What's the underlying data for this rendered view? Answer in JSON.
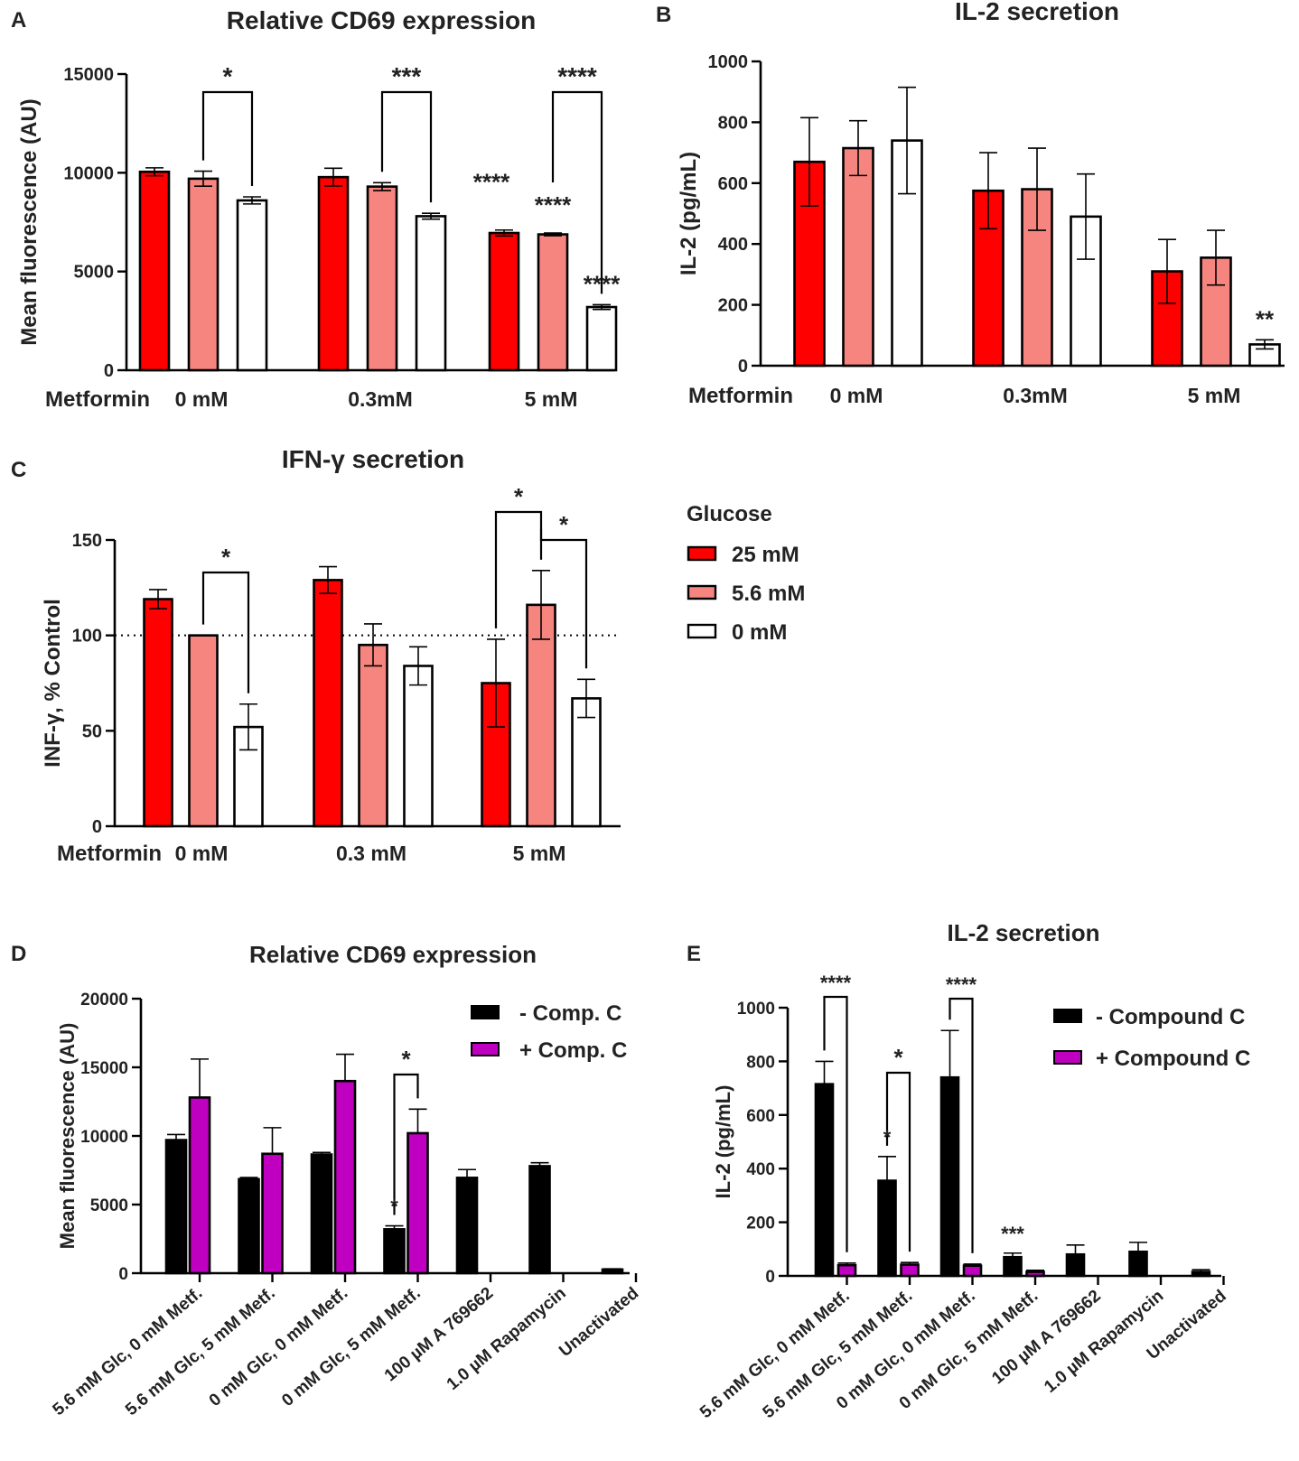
{
  "chart_data": [
    {
      "panel": "A",
      "type": "bar",
      "title": "Relative CD69 expression",
      "ylabel": "Mean fluorescence (AU)",
      "xlabel": "Metformin",
      "ylim": [
        0,
        15000
      ],
      "yticks": [
        "0",
        "5000",
        "10000",
        "15000"
      ],
      "categories": [
        "0 mM",
        "0.3mM",
        "5 mM"
      ],
      "series": [
        {
          "name": "25 mM",
          "color": "#ff0000",
          "values": [
            10050,
            9780,
            6950
          ],
          "errors": [
            200,
            450,
            150
          ]
        },
        {
          "name": "5.6 mM",
          "color": "#f7857f",
          "values": [
            9700,
            9300,
            6880
          ],
          "errors": [
            380,
            200,
            70
          ]
        },
        {
          "name": "0 mM",
          "color": "#ffffff",
          "values": [
            8600,
            7800,
            3200
          ],
          "errors": [
            180,
            150,
            120
          ]
        }
      ],
      "annotations": {
        "brackets": [
          {
            "label": "*",
            "group": 0,
            "from": 1,
            "to": 2
          },
          {
            "label": "***",
            "group": 1,
            "from": 1,
            "to": 2
          },
          {
            "label": "****",
            "group": 2,
            "from": 1,
            "to": 2
          }
        ],
        "stars": [
          {
            "label": "****",
            "group": 2,
            "series": 0
          },
          {
            "label": "****",
            "group": 2,
            "series": 1
          },
          {
            "label": "****",
            "group": 2,
            "series": 2
          }
        ]
      }
    },
    {
      "panel": "B",
      "type": "bar",
      "title": "IL-2 secretion",
      "ylabel": "IL-2 (pg/mL)",
      "xlabel": "Metformin",
      "ylim": [
        0,
        1000
      ],
      "yticks": [
        "0",
        "200",
        "400",
        "600",
        "800",
        "1000"
      ],
      "categories": [
        "0 mM",
        "0.3mM",
        "5 mM"
      ],
      "series": [
        {
          "name": "25 mM",
          "color": "#ff0000",
          "values": [
            670,
            575,
            310
          ],
          "errors": [
            145,
            125,
            105
          ]
        },
        {
          "name": "5.6 mM",
          "color": "#f7857f",
          "values": [
            715,
            580,
            355
          ],
          "errors": [
            90,
            135,
            90
          ]
        },
        {
          "name": "0 mM",
          "color": "#ffffff",
          "values": [
            740,
            490,
            70
          ],
          "errors": [
            175,
            140,
            15
          ]
        }
      ],
      "annotations": {
        "stars": [
          {
            "label": "**",
            "group": 2,
            "series": 2
          }
        ]
      }
    },
    {
      "panel": "C",
      "type": "bar",
      "title": "IFN-γ secretion",
      "ylabel": "INF-γ, % Control",
      "xlabel": "Metformin",
      "ylim": [
        0,
        150
      ],
      "yticks": [
        "0",
        "50",
        "100",
        "150"
      ],
      "reference_line": 100,
      "categories": [
        "0 mM",
        "0.3 mM",
        "5 mM"
      ],
      "series": [
        {
          "name": "25 mM",
          "color": "#ff0000",
          "values": [
            119,
            129,
            75
          ],
          "errors": [
            5,
            7,
            23
          ]
        },
        {
          "name": "5.6 mM",
          "color": "#f7857f",
          "values": [
            100,
            95,
            116
          ],
          "errors": [
            0,
            11,
            18
          ]
        },
        {
          "name": "0 mM",
          "color": "#ffffff",
          "values": [
            52,
            84,
            67
          ],
          "errors": [
            12,
            10,
            10
          ]
        }
      ],
      "annotations": {
        "brackets": [
          {
            "label": "*",
            "group": 0,
            "from": 1,
            "to": 2
          },
          {
            "label": "*",
            "group": 2,
            "from": 0,
            "to": 1
          },
          {
            "label": "*",
            "group": 2,
            "from": 1,
            "to": 2
          }
        ]
      }
    },
    {
      "panel": "D",
      "type": "bar",
      "title": "Relative CD69 expression",
      "ylabel": "Mean fluorescence (AU)",
      "ylim": [
        0,
        20000
      ],
      "yticks": [
        "0",
        "5000",
        "10000",
        "15000",
        "20000"
      ],
      "categories": [
        "5.6 mM Glc, 0 mM Metf.",
        "5.6 mM Glc, 5 mM Metf.",
        "0 mM Glc, 0 mM Metf.",
        "0 mM Glc, 5 mM Metf.",
        "100 µM A 769662",
        "1.0 µM Rapamycin",
        "Unactivated"
      ],
      "series": [
        {
          "name": "- Comp. C",
          "color": "#000000",
          "values": [
            9700,
            6850,
            8650,
            3200,
            6950,
            7800,
            270
          ],
          "errors": [
            400,
            120,
            150,
            250,
            600,
            250,
            50
          ]
        },
        {
          "name": "+ Comp. C",
          "color": "#c000c0",
          "values": [
            12800,
            8700,
            14000,
            10200,
            null,
            null,
            null
          ],
          "errors": [
            2800,
            1900,
            1950,
            1750,
            null,
            null,
            null
          ]
        }
      ],
      "annotations": {
        "brackets": [
          {
            "label": "*",
            "group": 3,
            "from": 0,
            "to": 1
          }
        ],
        "stars": [
          {
            "label": "*",
            "group": 3,
            "series": 0
          }
        ]
      }
    },
    {
      "panel": "E",
      "type": "bar",
      "title": "IL-2 secretion",
      "ylabel": "IL-2 (pg/mL)",
      "ylim": [
        0,
        1000
      ],
      "yticks": [
        "0",
        "200",
        "400",
        "600",
        "800",
        "1000"
      ],
      "categories": [
        "5.6 mM Glc, 0 mM Metf.",
        "5.6 mM Glc, 5 mM Metf.",
        "0 mM Glc, 0 mM Metf.",
        "0 mM Glc, 5 mM Metf.",
        "100 µM A 769662",
        "1.0 µM Rapamycin",
        "Unactivated"
      ],
      "series": [
        {
          "name": "- Compound C",
          "color": "#000000",
          "values": [
            715,
            355,
            740,
            70,
            80,
            90,
            15
          ],
          "errors": [
            85,
            90,
            175,
            15,
            35,
            35,
            8
          ]
        },
        {
          "name": "+ Compound C",
          "color": "#c000c0",
          "values": [
            40,
            42,
            38,
            15,
            null,
            null,
            null
          ],
          "errors": [
            8,
            8,
            6,
            6,
            null,
            null,
            null
          ]
        }
      ],
      "annotations": {
        "brackets": [
          {
            "label": "****",
            "group": 0,
            "from": 0,
            "to": 1
          },
          {
            "label": "*",
            "group": 1,
            "from": 0,
            "to": 1
          },
          {
            "label": "****",
            "group": 2,
            "from": 0,
            "to": 1
          }
        ],
        "stars": [
          {
            "label": "*",
            "group": 1,
            "series": 0
          },
          {
            "label": "***",
            "group": 3,
            "series": 0
          }
        ]
      }
    }
  ],
  "legend_glucose": {
    "title": "Glucose",
    "items": [
      {
        "label": "25 mM",
        "color": "#ff0000"
      },
      {
        "label": "5.6 mM",
        "color": "#f7857f"
      },
      {
        "label": "0 mM",
        "color": "#ffffff"
      }
    ]
  }
}
